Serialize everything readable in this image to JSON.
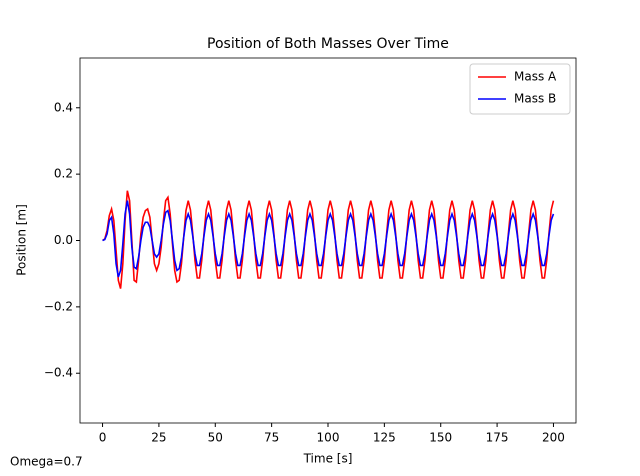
{
  "chart_data": {
    "type": "line",
    "title": "Position of Both Masses Over Time",
    "xlabel": "Time [s]",
    "ylabel": "Position [m]",
    "annotation": "Omega=0.7",
    "legend": "upper right",
    "xlim": [
      -10,
      210
    ],
    "ylim": [
      -0.55,
      0.55
    ],
    "xticks": [
      0,
      25,
      50,
      75,
      100,
      125,
      150,
      175,
      200
    ],
    "yticks": [
      {
        "value": -0.4,
        "label": "−0.4"
      },
      {
        "value": -0.2,
        "label": "−0.2"
      },
      {
        "value": 0,
        "label": "0.0"
      },
      0.2,
      0.4
    ],
    "x": [
      0,
      1,
      2,
      3,
      4,
      5,
      6,
      7,
      8,
      9,
      10,
      11,
      12,
      13,
      14,
      15,
      16,
      17,
      18,
      19,
      20,
      21,
      22,
      23,
      24,
      25,
      26,
      27,
      28,
      29,
      30,
      31,
      32,
      33,
      34,
      35,
      36,
      37,
      38,
      39,
      40,
      41,
      42,
      43,
      44,
      45,
      46,
      47,
      48,
      49,
      50,
      51,
      52,
      53,
      54,
      55,
      56,
      57,
      58,
      59,
      60,
      61,
      62,
      63,
      64,
      65,
      66,
      67,
      68,
      69,
      70,
      71,
      72,
      73,
      74,
      75,
      76,
      77,
      78,
      79,
      80,
      81,
      82,
      83,
      84,
      85,
      86,
      87,
      88,
      89,
      90,
      91,
      92,
      93,
      94,
      95,
      96,
      97,
      98,
      99,
      100,
      101,
      102,
      103,
      104,
      105,
      106,
      107,
      108,
      109,
      110,
      111,
      112,
      113,
      114,
      115,
      116,
      117,
      118,
      119,
      120,
      121,
      122,
      123,
      124,
      125,
      126,
      127,
      128,
      129,
      130,
      131,
      132,
      133,
      134,
      135,
      136,
      137,
      138,
      139,
      140,
      141,
      142,
      143,
      144,
      145,
      146,
      147,
      148,
      149,
      150,
      151,
      152,
      153,
      154,
      155,
      156,
      157,
      158,
      159,
      160,
      161,
      162,
      163,
      164,
      165,
      166,
      167,
      168,
      169,
      170,
      171,
      172,
      173,
      174,
      175,
      176,
      177,
      178,
      179,
      180,
      181,
      182,
      183,
      184,
      185,
      186,
      187,
      188,
      189,
      190,
      191,
      192,
      193,
      194,
      195,
      196,
      197,
      198,
      199,
      200
    ],
    "series": [
      {
        "name": "Mass A",
        "color": "#ff0000",
        "values": [
          0,
          0.005,
          0.03,
          0.075,
          0.095,
          0.06,
          -0.03,
          -0.12,
          -0.145,
          -0.07,
          0.06,
          0.15,
          0.12,
          0.0,
          -0.12,
          -0.125,
          -0.06,
          0.02,
          0.07,
          0.09,
          0.095,
          0.07,
          0.0,
          -0.07,
          -0.09,
          -0.07,
          -0.02,
          0.06,
          0.12,
          0.13,
          0.08,
          -0.01,
          -0.09,
          -0.125,
          -0.12,
          -0.07,
          0.01,
          0.09,
          0.12,
          0.092,
          0.021,
          -0.06,
          -0.113,
          -0.113,
          -0.06,
          0.021,
          0.092,
          0.12,
          0.092,
          0.021,
          -0.06,
          -0.113,
          -0.113,
          -0.06,
          0.021,
          0.092,
          0.12,
          0.092,
          0.021,
          -0.06,
          -0.113,
          -0.113,
          -0.06,
          0.021,
          0.092,
          0.12,
          0.092,
          0.021,
          -0.06,
          -0.113,
          -0.113,
          -0.06,
          0.021,
          0.092,
          0.12,
          0.092,
          0.021,
          -0.06,
          -0.113,
          -0.113,
          -0.06,
          0.021,
          0.092,
          0.12,
          0.092,
          0.021,
          -0.06,
          -0.113,
          -0.113,
          -0.06,
          0.021,
          0.092,
          0.12,
          0.092,
          0.021,
          -0.06,
          -0.113,
          -0.113,
          -0.06,
          0.021,
          0.092,
          0.12,
          0.092,
          0.021,
          -0.06,
          -0.113,
          -0.113,
          -0.06,
          0.021,
          0.092,
          0.12,
          0.092,
          0.021,
          -0.06,
          -0.113,
          -0.113,
          -0.06,
          0.021,
          0.092,
          0.12,
          0.092,
          0.021,
          -0.06,
          -0.113,
          -0.113,
          -0.06,
          0.021,
          0.092,
          0.12,
          0.092,
          0.021,
          -0.06,
          -0.113,
          -0.113,
          -0.06,
          0.021,
          0.092,
          0.12,
          0.092,
          0.021,
          -0.06,
          -0.113,
          -0.113,
          -0.06,
          0.021,
          0.092,
          0.12,
          0.092,
          0.021,
          -0.06,
          -0.113,
          -0.113,
          -0.06,
          0.021,
          0.092,
          0.12,
          0.092,
          0.021,
          -0.06,
          -0.113,
          -0.113,
          -0.06,
          0.021,
          0.092,
          0.12,
          0.092,
          0.021,
          -0.06,
          -0.113,
          -0.113,
          -0.06,
          0.021,
          0.092,
          0.12,
          0.092,
          0.021,
          -0.06,
          -0.113,
          -0.113,
          -0.06,
          0.021,
          0.092,
          0.12,
          0.092,
          0.021,
          -0.06,
          -0.113,
          -0.113,
          -0.06,
          0.021,
          0.092,
          0.12,
          0.092,
          0.021,
          -0.06,
          -0.113,
          -0.113,
          -0.06,
          0.021,
          0.092,
          0.12
        ]
      },
      {
        "name": "Mass B",
        "color": "#0000ff",
        "values": [
          0,
          0.003,
          0.02,
          0.06,
          0.07,
          0.02,
          -0.07,
          -0.11,
          -0.09,
          -0.01,
          0.08,
          0.12,
          0.08,
          -0.02,
          -0.08,
          -0.085,
          -0.05,
          0.0,
          0.04,
          0.055,
          0.055,
          0.04,
          0.0,
          -0.04,
          -0.05,
          -0.04,
          0.0,
          0.05,
          0.085,
          0.09,
          0.06,
          0.0,
          -0.06,
          -0.09,
          -0.085,
          -0.05,
          0.01,
          0.06,
          0.08,
          0.061,
          0.014,
          -0.04,
          -0.075,
          -0.075,
          -0.04,
          0.014,
          0.061,
          0.08,
          0.061,
          0.014,
          -0.04,
          -0.075,
          -0.075,
          -0.04,
          0.014,
          0.061,
          0.08,
          0.061,
          0.014,
          -0.04,
          -0.075,
          -0.075,
          -0.04,
          0.014,
          0.061,
          0.08,
          0.061,
          0.014,
          -0.04,
          -0.075,
          -0.075,
          -0.04,
          0.014,
          0.061,
          0.08,
          0.061,
          0.014,
          -0.04,
          -0.075,
          -0.075,
          -0.04,
          0.014,
          0.061,
          0.08,
          0.061,
          0.014,
          -0.04,
          -0.075,
          -0.075,
          -0.04,
          0.014,
          0.061,
          0.08,
          0.061,
          0.014,
          -0.04,
          -0.075,
          -0.075,
          -0.04,
          0.014,
          0.061,
          0.08,
          0.061,
          0.014,
          -0.04,
          -0.075,
          -0.075,
          -0.04,
          0.014,
          0.061,
          0.08,
          0.061,
          0.014,
          -0.04,
          -0.075,
          -0.075,
          -0.04,
          0.014,
          0.061,
          0.08,
          0.061,
          0.014,
          -0.04,
          -0.075,
          -0.075,
          -0.04,
          0.014,
          0.061,
          0.08,
          0.061,
          0.014,
          -0.04,
          -0.075,
          -0.075,
          -0.04,
          0.014,
          0.061,
          0.08,
          0.061,
          0.014,
          -0.04,
          -0.075,
          -0.075,
          -0.04,
          0.014,
          0.061,
          0.08,
          0.061,
          0.014,
          -0.04,
          -0.075,
          -0.075,
          -0.04,
          0.014,
          0.061,
          0.08,
          0.061,
          0.014,
          -0.04,
          -0.075,
          -0.075,
          -0.04,
          0.014,
          0.061,
          0.08,
          0.061,
          0.014,
          -0.04,
          -0.075,
          -0.075,
          -0.04,
          0.014,
          0.061,
          0.08,
          0.061,
          0.014,
          -0.04,
          -0.075,
          -0.075,
          -0.04,
          0.014,
          0.061,
          0.08,
          0.061,
          0.014,
          -0.04,
          -0.075,
          -0.075,
          -0.04,
          0.014,
          0.061,
          0.08,
          0.061,
          0.014,
          -0.04,
          -0.075,
          -0.075,
          -0.04,
          0.014,
          0.061,
          0.08
        ]
      }
    ]
  }
}
